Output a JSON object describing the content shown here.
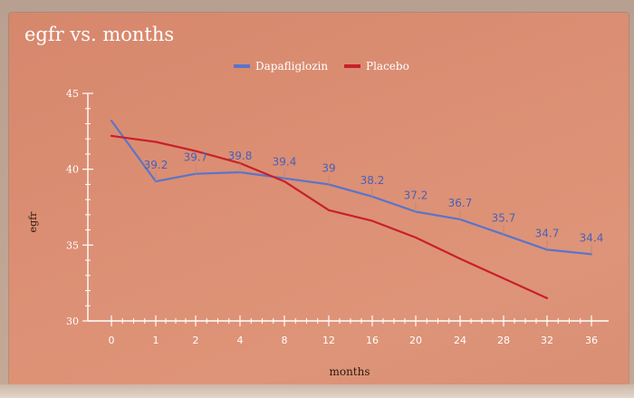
{
  "chart_data": {
    "type": "line",
    "title": "egfr vs. months",
    "xlabel": "months",
    "ylabel": "egfr",
    "categories": [
      "0",
      "1",
      "2",
      "4",
      "8",
      "12",
      "16",
      "20",
      "24",
      "28",
      "32",
      "36"
    ],
    "ylim": [
      30,
      45
    ],
    "yticks": [
      "30",
      "35",
      "40",
      "45"
    ],
    "legend_position": "top",
    "series": [
      {
        "name": "Dapafliglozin",
        "color": "#5b74c9",
        "values": [
          43.2,
          39.2,
          39.7,
          39.8,
          39.4,
          39,
          38.2,
          37.2,
          36.7,
          35.7,
          34.7,
          34.4
        ],
        "labels": [
          "",
          "39.2",
          "39.7",
          "39.8",
          "39.4",
          "39",
          "38.2",
          "37.2",
          "36.7",
          "35.7",
          "34.7",
          "34.4"
        ]
      },
      {
        "name": "Placebo",
        "color": "#c8202a",
        "values": [
          42.2,
          41.8,
          41.2,
          40.4,
          39.2,
          37.3,
          36.6,
          35.5,
          34.1,
          32.8,
          31.5,
          null
        ],
        "labels": []
      }
    ]
  }
}
